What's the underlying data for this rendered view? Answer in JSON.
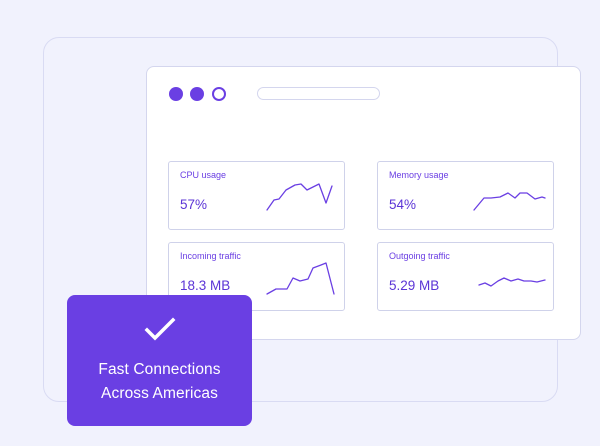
{
  "window": {
    "controls": [
      "filled-dot",
      "filled-dot",
      "hollow-dot"
    ],
    "accent_color": "#6a3fe3"
  },
  "metrics": {
    "cpu": {
      "label": "CPU usage",
      "value": "57%"
    },
    "memory": {
      "label": "Memory usage",
      "value": "54%"
    },
    "incoming": {
      "label": "Incoming traffic",
      "value": "18.3 MB"
    },
    "outgoing": {
      "label": "Outgoing traffic",
      "value": "5.29 MB"
    }
  },
  "badge": {
    "icon": "checkmark-icon",
    "line1": "Fast Connections",
    "line2": "Across Americas",
    "background": "#6a3fe3"
  }
}
